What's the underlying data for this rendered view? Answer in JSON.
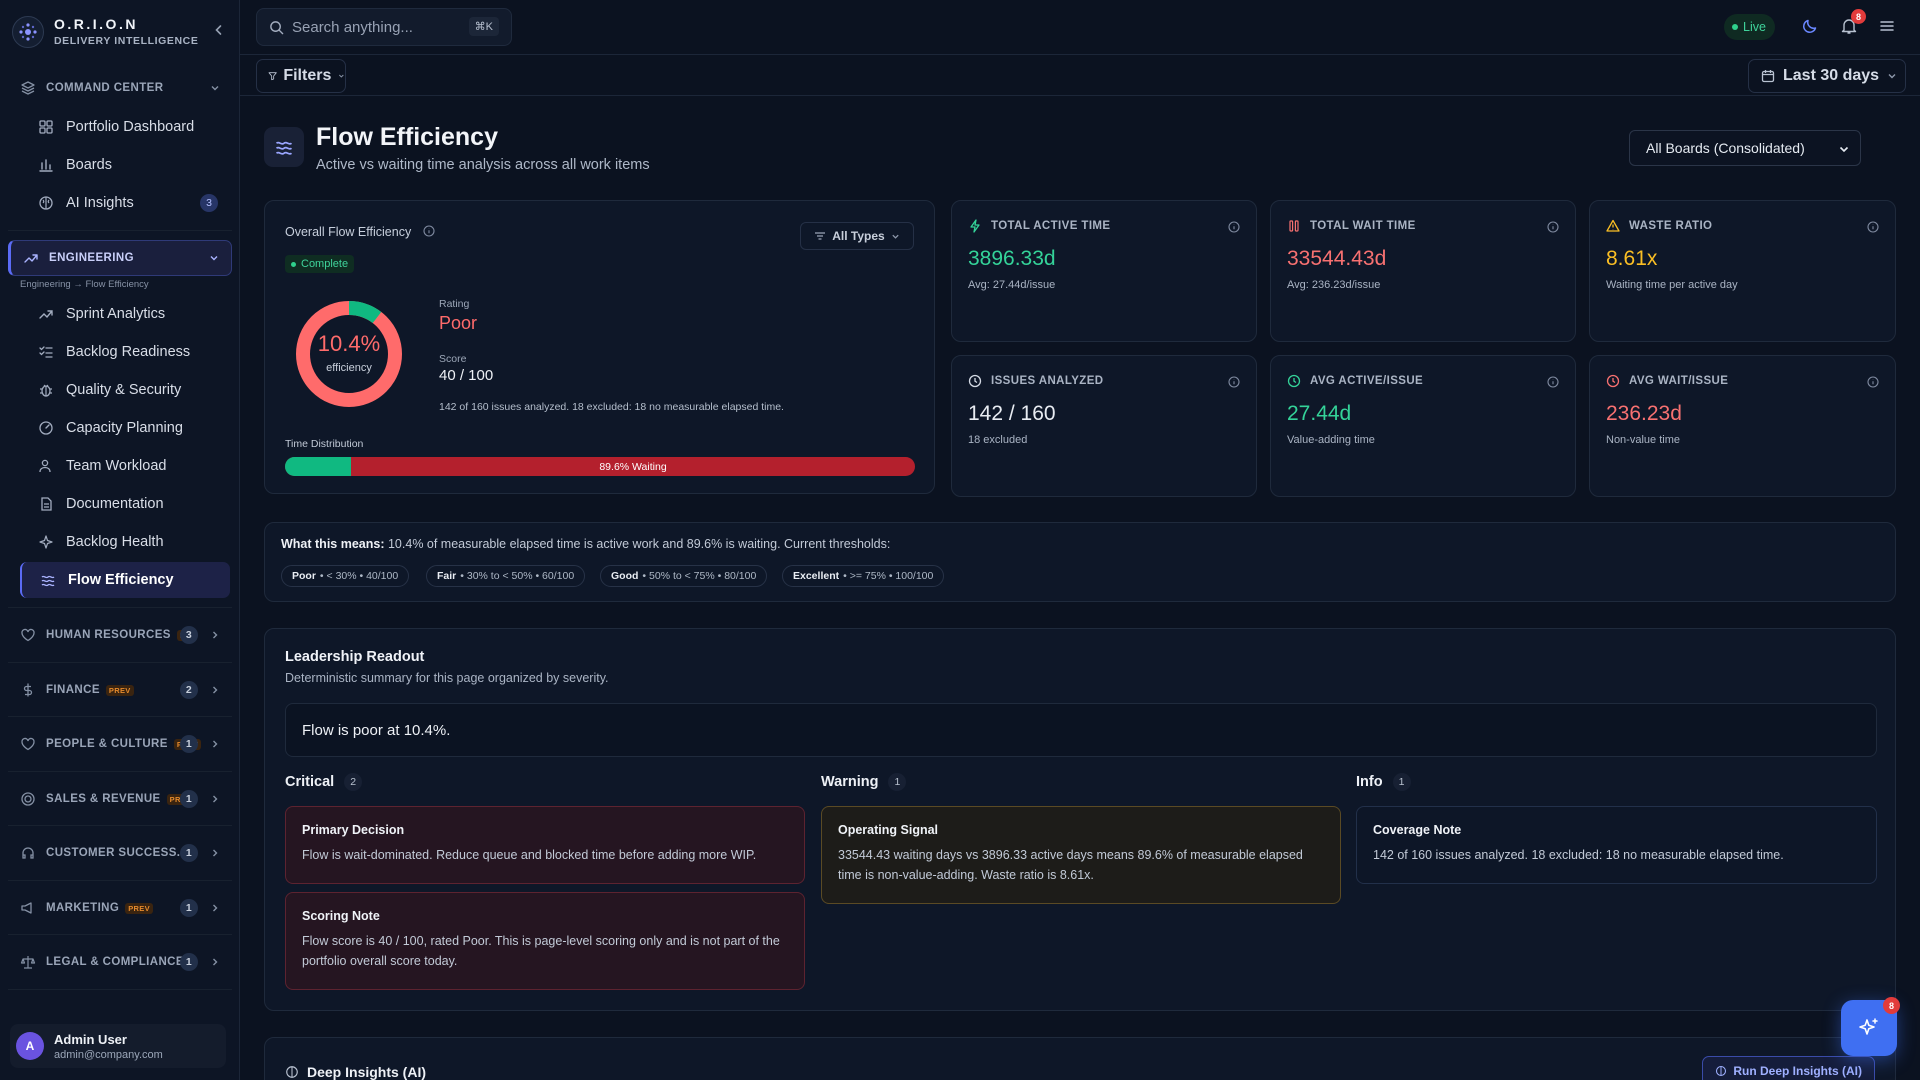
{
  "brand": {
    "name": "O.R.I.O.N",
    "subtitle": "DELIVERY INTELLIGENCE"
  },
  "sidebar": {
    "command_center": {
      "label": "COMMAND CENTER",
      "items": [
        {
          "label": "Portfolio Dashboard",
          "icon": "dashboard-icon"
        },
        {
          "label": "Boards",
          "icon": "bar-chart-icon"
        },
        {
          "label": "AI Insights",
          "icon": "brain-icon",
          "count": "3"
        }
      ]
    },
    "engineering": {
      "label": "ENGINEERING",
      "breadcrumb": "Engineering → Flow Efficiency",
      "items": [
        {
          "label": "Sprint Analytics",
          "icon": "trending-up-icon"
        },
        {
          "label": "Backlog Readiness",
          "icon": "list-check-icon"
        },
        {
          "label": "Quality & Security",
          "icon": "bug-icon"
        },
        {
          "label": "Capacity Planning",
          "icon": "gauge-icon"
        },
        {
          "label": "Team Workload",
          "icon": "users-icon"
        },
        {
          "label": "Documentation",
          "icon": "document-icon"
        },
        {
          "label": "Backlog Health",
          "icon": "sparkle-icon"
        },
        {
          "label": "Flow Efficiency",
          "icon": "waves-icon",
          "active": true
        }
      ]
    },
    "groups": [
      {
        "label": "HUMAN RESOURCES",
        "tag": "P...",
        "count": "3",
        "icon": "heart-icon"
      },
      {
        "label": "FINANCE",
        "tag": "PREV",
        "count": "2",
        "icon": "dollar-icon"
      },
      {
        "label": "PEOPLE & CULTURE",
        "tag": "PREV",
        "count": "1",
        "icon": "heart-icon"
      },
      {
        "label": "SALES & REVENUE",
        "tag": "PREV",
        "count": "1",
        "icon": "target-icon"
      },
      {
        "label": "CUSTOMER SUCCESS...",
        "tag": "",
        "count": "1",
        "icon": "headset-icon"
      },
      {
        "label": "MARKETING",
        "tag": "PREV",
        "count": "1",
        "icon": "megaphone-icon"
      },
      {
        "label": "LEGAL & COMPLIANCE...",
        "tag": "",
        "count": "1",
        "icon": "scale-icon"
      }
    ],
    "user": {
      "initial": "A",
      "name": "Admin User",
      "email": "admin@company.com"
    }
  },
  "topbar": {
    "search_placeholder": "Search anything...",
    "shortcut": "⌘K",
    "live": "Live",
    "notifications": "8"
  },
  "filterbar": {
    "filters": "Filters",
    "range": "Last 30 days"
  },
  "page": {
    "title": "Flow Efficiency",
    "subtitle": "Active vs waiting time analysis across all work items",
    "board_select": "All Boards (Consolidated)"
  },
  "overall": {
    "title": "Overall Flow Efficiency",
    "types": "All Types",
    "status": "Complete",
    "efficiency": 10.4,
    "efficiency_label": "10.4%",
    "efficiency_caption": "efficiency",
    "rating_label": "Rating",
    "rating": "Poor",
    "score_label": "Score",
    "score": "40 / 100",
    "analysis_note": "142 of 160 issues analyzed. 18 excluded: 18 no measurable elapsed time.",
    "dist_label": "Time Distribution",
    "waiting_label": "89.6% Waiting",
    "active_share": 10.4
  },
  "kpis": [
    {
      "label": "TOTAL ACTIVE TIME",
      "value": "3896.33d",
      "note": "Avg: 27.44d/issue",
      "color": "#34d399",
      "icon": "bolt-icon"
    },
    {
      "label": "TOTAL WAIT TIME",
      "value": "33544.43d",
      "note": "Avg: 236.23d/issue",
      "color": "#f87171",
      "icon": "pause-icon"
    },
    {
      "label": "WASTE RATIO",
      "value": "8.61x",
      "note": "Waiting time per active day",
      "color": "#fbbf24",
      "icon": "warning-icon"
    },
    {
      "label": "ISSUES ANALYZED",
      "value": "142 / 160",
      "note": "18 excluded",
      "color": "#e8ecf2",
      "icon": "clock-icon"
    },
    {
      "label": "AVG ACTIVE/ISSUE",
      "value": "27.44d",
      "note": "Value-adding time",
      "color": "#34d399",
      "icon": "clock-icon"
    },
    {
      "label": "AVG WAIT/ISSUE",
      "value": "236.23d",
      "note": "Non-value time",
      "color": "#f87171",
      "icon": "clock-icon"
    }
  ],
  "meaning": {
    "lead": "What this means:",
    "text": "10.4% of measurable elapsed time is active work and 89.6% is waiting. Current thresholds:",
    "thresholds": [
      {
        "name": "Poor",
        "desc": "• < 30% • 40/100"
      },
      {
        "name": "Fair",
        "desc": "• 30% to < 50% • 60/100"
      },
      {
        "name": "Good",
        "desc": "• 50% to < 75% • 80/100"
      },
      {
        "name": "Excellent",
        "desc": "• >= 75% • 100/100"
      }
    ]
  },
  "readout": {
    "title": "Leadership Readout",
    "subtitle": "Deterministic summary for this page organized by severity.",
    "headline": "Flow is poor at 10.4%.",
    "critical": {
      "label": "Critical",
      "count": "2",
      "cards": [
        {
          "title": "Primary Decision",
          "body": "Flow is wait-dominated. Reduce queue and blocked time before adding more WIP."
        },
        {
          "title": "Scoring Note",
          "body": "Flow score is 40 / 100, rated Poor. This is page-level scoring only and is not part of the portfolio overall score today."
        }
      ]
    },
    "warning": {
      "label": "Warning",
      "count": "1",
      "cards": [
        {
          "title": "Operating Signal",
          "body": "33544.43 waiting days vs 3896.33 active days means 89.6% of measurable elapsed time is non-value-adding. Waste ratio is 8.61x."
        }
      ]
    },
    "info": {
      "label": "Info",
      "count": "1",
      "cards": [
        {
          "title": "Coverage Note",
          "body": "142 of 160 issues analyzed. 18 excluded: 18 no measurable elapsed time."
        }
      ]
    }
  },
  "deep": {
    "title": "Deep Insights (AI)",
    "button": "Run Deep Insights (AI)"
  },
  "fab_badge": "8",
  "colors": {
    "accent": "#5b6bf5",
    "active": "#10b981",
    "waiting": "#b4202d",
    "poor": "#ff6b6b"
  }
}
